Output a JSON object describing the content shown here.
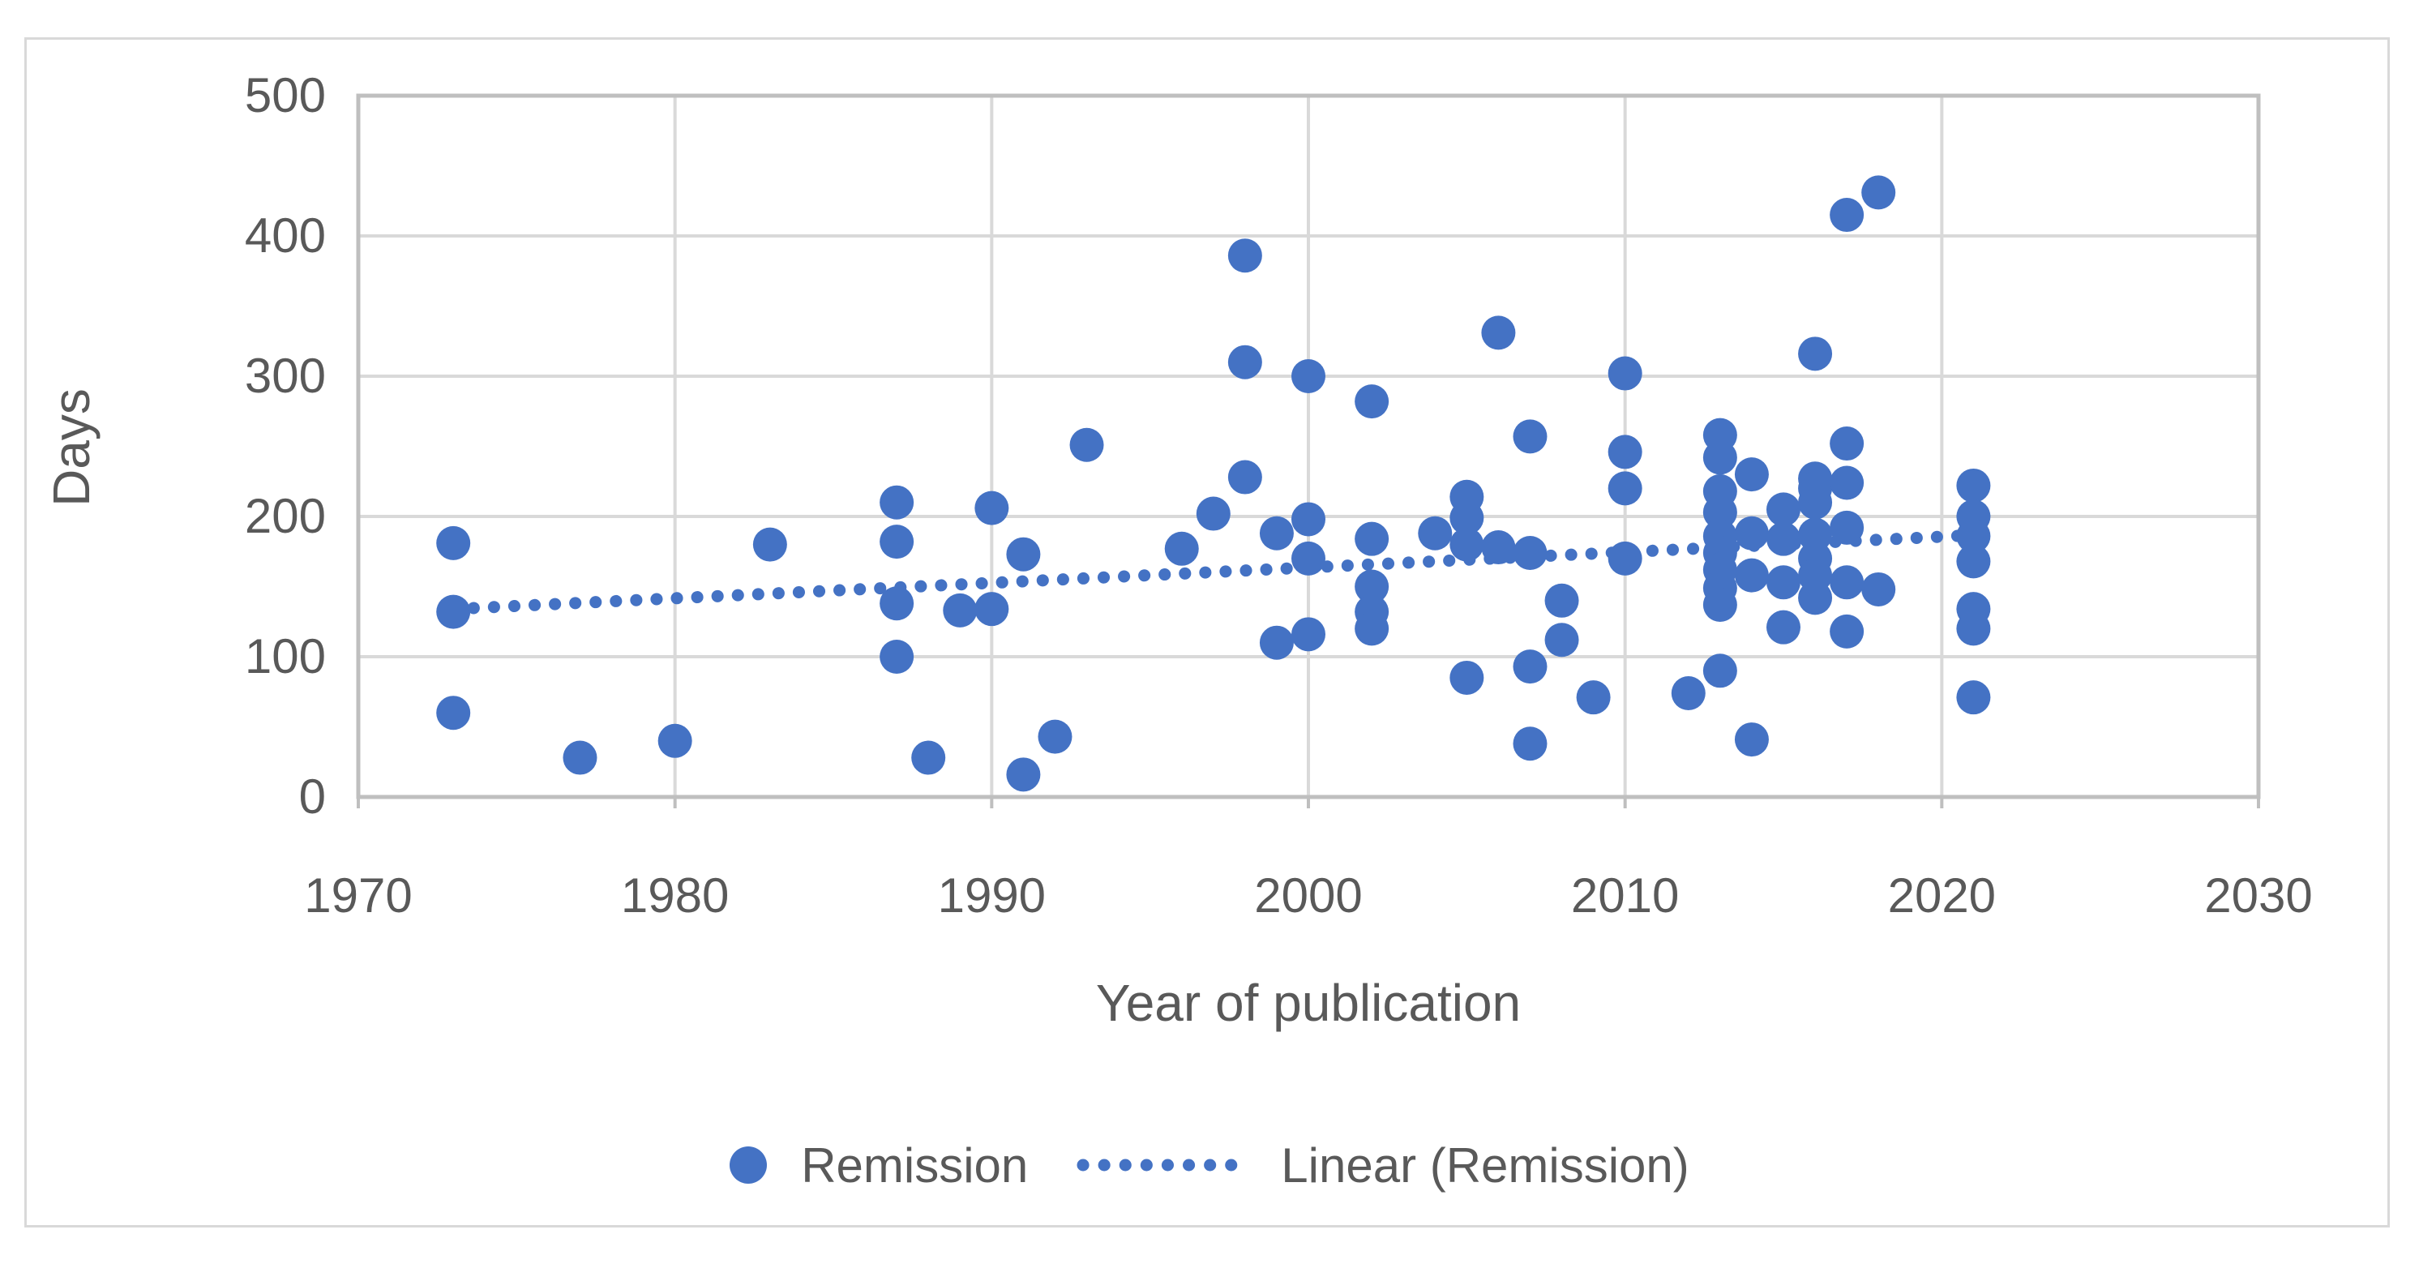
{
  "figure": {
    "background_color": "#FFFFFF",
    "border_color": "#D9D9D9",
    "gridline_color": "#D9D9D9",
    "axis_line_color": "#BFBFBF",
    "text_color": "#595959",
    "accent_color": "#4472C4"
  },
  "chart_data": {
    "type": "scatter",
    "title": "",
    "xlabel": "Year of publication",
    "ylabel": "Days",
    "xlim": [
      1970,
      2030
    ],
    "ylim": [
      0,
      500
    ],
    "x_ticks": [
      "1970",
      "1980",
      "1990",
      "2000",
      "2010",
      "2020",
      "2030"
    ],
    "y_ticks": [
      "0",
      "100",
      "200",
      "300",
      "400",
      "500"
    ],
    "grid": true,
    "legend_position": "bottom",
    "series": [
      {
        "name": "Remission",
        "type": "scatter",
        "color": "#4472C4",
        "marker_radius": 21,
        "points": [
          [
            1973,
            181
          ],
          [
            1973,
            132
          ],
          [
            1973,
            60
          ],
          [
            1977,
            28
          ],
          [
            1980,
            40
          ],
          [
            1983,
            180
          ],
          [
            1987,
            210
          ],
          [
            1987,
            182
          ],
          [
            1987,
            138
          ],
          [
            1987,
            100
          ],
          [
            1988,
            28
          ],
          [
            1989,
            133
          ],
          [
            1990,
            206
          ],
          [
            1990,
            134
          ],
          [
            1991,
            173
          ],
          [
            1991,
            16
          ],
          [
            1992,
            43
          ],
          [
            1993,
            251
          ],
          [
            1996,
            177
          ],
          [
            1997,
            202
          ],
          [
            1998,
            386
          ],
          [
            1998,
            310
          ],
          [
            1998,
            228
          ],
          [
            1999,
            188
          ],
          [
            1999,
            110
          ],
          [
            2000,
            300
          ],
          [
            2000,
            198
          ],
          [
            2000,
            170
          ],
          [
            2000,
            116
          ],
          [
            2002,
            282
          ],
          [
            2002,
            184
          ],
          [
            2002,
            150
          ],
          [
            2002,
            132
          ],
          [
            2002,
            120
          ],
          [
            2004,
            188
          ],
          [
            2005,
            214
          ],
          [
            2005,
            199
          ],
          [
            2005,
            180
          ],
          [
            2005,
            85
          ],
          [
            2006,
            331
          ],
          [
            2006,
            178
          ],
          [
            2007,
            257
          ],
          [
            2007,
            174
          ],
          [
            2007,
            93
          ],
          [
            2007,
            38
          ],
          [
            2008,
            140
          ],
          [
            2008,
            112
          ],
          [
            2009,
            71
          ],
          [
            2010,
            302
          ],
          [
            2010,
            246
          ],
          [
            2010,
            220
          ],
          [
            2010,
            170
          ],
          [
            2012,
            74
          ],
          [
            2013,
            258
          ],
          [
            2013,
            242
          ],
          [
            2013,
            218
          ],
          [
            2013,
            203
          ],
          [
            2013,
            186
          ],
          [
            2013,
            174
          ],
          [
            2013,
            162
          ],
          [
            2013,
            149
          ],
          [
            2013,
            137
          ],
          [
            2013,
            90
          ],
          [
            2014,
            230
          ],
          [
            2014,
            188
          ],
          [
            2014,
            158
          ],
          [
            2014,
            41
          ],
          [
            2015,
            205
          ],
          [
            2015,
            184
          ],
          [
            2015,
            153
          ],
          [
            2015,
            121
          ],
          [
            2016,
            316
          ],
          [
            2016,
            227
          ],
          [
            2016,
            220
          ],
          [
            2016,
            210
          ],
          [
            2016,
            187
          ],
          [
            2016,
            170
          ],
          [
            2016,
            158
          ],
          [
            2016,
            142
          ],
          [
            2017,
            415
          ],
          [
            2017,
            252
          ],
          [
            2017,
            224
          ],
          [
            2017,
            192
          ],
          [
            2017,
            153
          ],
          [
            2017,
            118
          ],
          [
            2018,
            431
          ],
          [
            2018,
            148
          ],
          [
            2021,
            222
          ],
          [
            2021,
            200
          ],
          [
            2021,
            186
          ],
          [
            2021,
            168
          ],
          [
            2021,
            134
          ],
          [
            2021,
            120
          ],
          [
            2021,
            71
          ]
        ]
      },
      {
        "name": "Linear (Remission)",
        "type": "dotted-trendline",
        "color": "#4472C4",
        "start": [
          1973,
          134
        ],
        "end": [
          2021.3,
          187
        ]
      }
    ]
  },
  "legend": {
    "remission_label": "Remission",
    "linear_label": "Linear (Remission)"
  }
}
